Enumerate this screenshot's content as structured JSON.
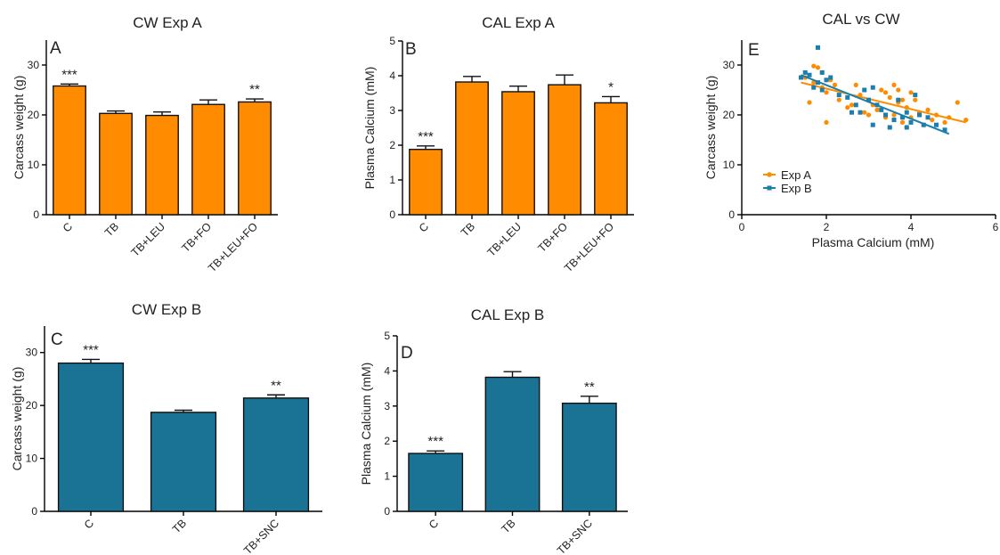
{
  "chart_data": [
    {
      "id": "A",
      "type": "bar",
      "title": "CW Exp A",
      "panel_label": "A",
      "ylabel": "Carcass weight (g)",
      "ylim": [
        0,
        35
      ],
      "yticks": [
        0,
        10,
        20,
        30
      ],
      "categories": [
        "C",
        "TB",
        "TB+LEU",
        "TB+FO",
        "TB+LEU+FO"
      ],
      "values": [
        25.8,
        20.3,
        19.9,
        22.1,
        22.6
      ],
      "errors": [
        0.4,
        0.5,
        0.7,
        0.9,
        0.6
      ],
      "significance": [
        "***",
        "",
        "",
        "",
        "**"
      ],
      "color": "#ff8c00"
    },
    {
      "id": "B",
      "type": "bar",
      "title": "CAL Exp A",
      "panel_label": "B",
      "ylabel": "Plasma Calcium (mM)",
      "ylim": [
        0,
        5
      ],
      "yticks": [
        0,
        1,
        2,
        3,
        4,
        5
      ],
      "categories": [
        "C",
        "TB",
        "TB+LEU",
        "TB+FO",
        "TB+LEU+FO"
      ],
      "values": [
        1.88,
        3.82,
        3.54,
        3.74,
        3.22
      ],
      "errors": [
        0.1,
        0.16,
        0.16,
        0.28,
        0.18
      ],
      "significance": [
        "***",
        "",
        "",
        "",
        "*"
      ],
      "color": "#ff8c00"
    },
    {
      "id": "E",
      "type": "scatter",
      "title": "CAL vs CW",
      "panel_label": "E",
      "xlabel": "Plasma Calcium (mM)",
      "ylabel": "Carcass weight (g)",
      "xlim": [
        0,
        6
      ],
      "ylim": [
        0,
        35
      ],
      "xticks": [
        0,
        2,
        4,
        6
      ],
      "yticks": [
        0,
        10,
        20,
        30
      ],
      "legend_position": "left-middle",
      "series": [
        {
          "name": "Exp A",
          "color": "#ff8c00",
          "marker": "circle",
          "points": [
            [
              1.5,
              27.5
            ],
            [
              1.6,
              22.5
            ],
            [
              1.7,
              29.8
            ],
            [
              1.7,
              26.5
            ],
            [
              1.8,
              29.5
            ],
            [
              1.9,
              28.5
            ],
            [
              1.9,
              25.5
            ],
            [
              2.0,
              18.5
            ],
            [
              2.0,
              24.5
            ],
            [
              2.1,
              27
            ],
            [
              2.2,
              26
            ],
            [
              2.3,
              23
            ],
            [
              2.5,
              21.5
            ],
            [
              2.6,
              22
            ],
            [
              2.7,
              26
            ],
            [
              2.8,
              24
            ],
            [
              2.9,
              20.5
            ],
            [
              3.0,
              20
            ],
            [
              3.1,
              22
            ],
            [
              3.2,
              21
            ],
            [
              3.3,
              25
            ],
            [
              3.4,
              19.5
            ],
            [
              3.4,
              24.5
            ],
            [
              3.5,
              17.5
            ],
            [
              3.5,
              23.5
            ],
            [
              3.6,
              26
            ],
            [
              3.6,
              20
            ],
            [
              3.7,
              25
            ],
            [
              3.7,
              22.5
            ],
            [
              3.8,
              18.5
            ],
            [
              3.8,
              23
            ],
            [
              3.9,
              21.5
            ],
            [
              3.9,
              17.5
            ],
            [
              4.0,
              24.5
            ],
            [
              4.0,
              19.5
            ],
            [
              4.1,
              23
            ],
            [
              4.2,
              20.5
            ],
            [
              4.3,
              18
            ],
            [
              4.4,
              21
            ],
            [
              4.5,
              19
            ],
            [
              4.6,
              20
            ],
            [
              4.8,
              18.5
            ],
            [
              4.9,
              19.5
            ],
            [
              5.1,
              22.5
            ],
            [
              5.3,
              19
            ]
          ],
          "trend": [
            [
              1.4,
              26.5
            ],
            [
              5.3,
              18.5
            ]
          ]
        },
        {
          "name": "Exp B",
          "color": "#1a7fae",
          "marker": "square",
          "points": [
            [
              1.4,
              27.5
            ],
            [
              1.5,
              28.5
            ],
            [
              1.6,
              28
            ],
            [
              1.7,
              25.5
            ],
            [
              1.8,
              33.5
            ],
            [
              1.8,
              26.5
            ],
            [
              1.9,
              25
            ],
            [
              1.9,
              28.5
            ],
            [
              2.0,
              27
            ],
            [
              2.1,
              27.5
            ],
            [
              2.3,
              24
            ],
            [
              2.5,
              23.5
            ],
            [
              2.6,
              20.5
            ],
            [
              2.7,
              22
            ],
            [
              2.8,
              20.5
            ],
            [
              2.9,
              25
            ],
            [
              3.0,
              23
            ],
            [
              3.1,
              18
            ],
            [
              3.1,
              25.5
            ],
            [
              3.2,
              22
            ],
            [
              3.3,
              21
            ],
            [
              3.4,
              20
            ],
            [
              3.5,
              17.5
            ],
            [
              3.6,
              19
            ],
            [
              3.7,
              23
            ],
            [
              3.8,
              19.5
            ],
            [
              3.9,
              17.5
            ],
            [
              3.9,
              20.5
            ],
            [
              4.0,
              18.5
            ],
            [
              4.1,
              24
            ],
            [
              4.2,
              20
            ],
            [
              4.3,
              18
            ],
            [
              4.4,
              19.5
            ],
            [
              4.6,
              18
            ],
            [
              4.8,
              17
            ]
          ],
          "trend": [
            [
              1.4,
              28
            ],
            [
              4.9,
              16.2
            ]
          ]
        }
      ]
    },
    {
      "id": "C",
      "type": "bar",
      "title": "CW Exp B",
      "panel_label": "C",
      "ylabel": "Carcass weight (g)",
      "ylim": [
        0,
        35
      ],
      "yticks": [
        0,
        10,
        20,
        30
      ],
      "categories": [
        "C",
        "TB",
        "TB+SNC"
      ],
      "values": [
        28.0,
        18.7,
        21.4
      ],
      "errors": [
        0.7,
        0.4,
        0.6
      ],
      "significance": [
        "***",
        "",
        "**"
      ],
      "color": "#1a7394"
    },
    {
      "id": "D",
      "type": "bar",
      "title": "CAL Exp B",
      "panel_label": "D",
      "ylabel": "Plasma Calcium (mM)",
      "ylim": [
        0,
        5
      ],
      "yticks": [
        0,
        1,
        2,
        3,
        4,
        5
      ],
      "categories": [
        "C",
        "TB",
        "TB+SNC"
      ],
      "values": [
        1.65,
        3.82,
        3.08
      ],
      "errors": [
        0.07,
        0.16,
        0.2
      ],
      "significance": [
        "***",
        "",
        "**"
      ],
      "color": "#1a7394"
    }
  ]
}
